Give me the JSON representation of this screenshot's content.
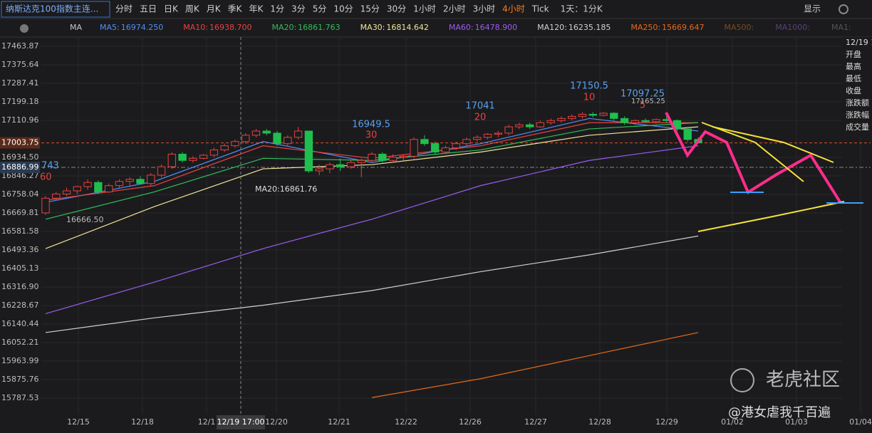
{
  "toolbar": {
    "symbol": "纳斯达克100指数主连...",
    "periods": [
      "分时",
      "五日",
      "日K",
      "周K",
      "月K",
      "季K",
      "年K",
      "1分",
      "3分",
      "5分",
      "10分",
      "15分",
      "30分",
      "1小时",
      "2小时",
      "3小时",
      "4小时",
      "Tick"
    ],
    "active": "4小时",
    "range": "1天：1分K",
    "display": "显示"
  },
  "legend": {
    "title": "MA",
    "items": [
      {
        "name": "MA5:",
        "value": "16974.250",
        "color": "#4f8ff7"
      },
      {
        "name": "MA10:",
        "value": "16938.700",
        "color": "#e8423f"
      },
      {
        "name": "MA20:",
        "value": "16861.763",
        "color": "#2fbf5b"
      },
      {
        "name": "MA30:",
        "value": "16814.642",
        "color": "#f2e59a"
      },
      {
        "name": "MA60:",
        "value": "16478.900",
        "color": "#9b5cf0"
      },
      {
        "name": "MA120:",
        "value": "16235.185",
        "color": "#d0d0d0"
      },
      {
        "name": "MA250:",
        "value": "15669.647",
        "color": "#e66a1a"
      },
      {
        "name": "MA500:",
        "value": "",
        "color": "#7a4a22"
      },
      {
        "name": "MA1000:",
        "value": "",
        "color": "#5b3f7a"
      },
      {
        "name": "MA1:",
        "value": "",
        "color": "#555555"
      }
    ]
  },
  "chart_data": {
    "type": "candlestick",
    "ylim": [
      15709.5,
      17508
    ],
    "yticks": [
      17463.87,
      17375.64,
      17287.41,
      17199.18,
      17110.96,
      {
        "value": 16934.5,
        "label": "16934.50"
      },
      16846.27,
      16758.04,
      16669.81,
      16581.58,
      16493.36,
      16405.13,
      {
        "value": 16316.9,
        "label": "16316.90"
      },
      16228.67,
      16140.44,
      16052.21,
      15963.99,
      15875.76,
      15787.53
    ],
    "price_markers": [
      17003.75,
      16886.99
    ],
    "x_labels": [
      "12/15",
      "12/18",
      "12/1",
      "12/20",
      "12/21",
      "12/22",
      "12/26",
      "12/27",
      "12/28",
      "12/29",
      "01/02",
      "01/03",
      "01/04"
    ],
    "crosshair_label": "12/19 17:00",
    "candles": [
      [
        16670,
        16750,
        16660,
        16740
      ],
      [
        16740,
        16770,
        16730,
        16760
      ],
      [
        16760,
        16790,
        16750,
        16775
      ],
      [
        16775,
        16800,
        16760,
        16795
      ],
      [
        16795,
        16830,
        16780,
        16815
      ],
      [
        16815,
        16825,
        16760,
        16770
      ],
      [
        16770,
        16810,
        16765,
        16800
      ],
      [
        16800,
        16830,
        16790,
        16820
      ],
      [
        16820,
        16840,
        16800,
        16830
      ],
      [
        16830,
        16845,
        16805,
        16810
      ],
      [
        16810,
        16860,
        16800,
        16850
      ],
      [
        16850,
        16900,
        16840,
        16890
      ],
      [
        16890,
        16960,
        16880,
        16950
      ],
      [
        16950,
        16960,
        16910,
        16920
      ],
      [
        16920,
        16940,
        16910,
        16930
      ],
      [
        16930,
        16950,
        16925,
        16945
      ],
      [
        16945,
        16980,
        16935,
        16970
      ],
      [
        16970,
        17000,
        16960,
        16990
      ],
      [
        16990,
        17020,
        16980,
        17010
      ],
      [
        17010,
        17050,
        17000,
        17040
      ],
      [
        17040,
        17070,
        17030,
        17060
      ],
      [
        17060,
        17070,
        17040,
        17050
      ],
      [
        17050,
        17060,
        16990,
        17000
      ],
      [
        17000,
        17040,
        16990,
        17030
      ],
      [
        17030,
        17080,
        17020,
        17060
      ],
      [
        17060,
        17060,
        16860,
        16870
      ],
      [
        16870,
        16900,
        16850,
        16880
      ],
      [
        16880,
        16910,
        16860,
        16900
      ],
      [
        16900,
        16930,
        16870,
        16890
      ],
      [
        16890,
        16920,
        16880,
        16910
      ],
      [
        16910,
        16930,
        16840,
        16920
      ],
      [
        16920,
        16960,
        16910,
        16950
      ],
      [
        16950,
        16960,
        16910,
        16920
      ],
      [
        16920,
        16950,
        16910,
        16935
      ],
      [
        16935,
        16950,
        16920,
        16940
      ],
      [
        16940,
        17030,
        16930,
        17020
      ],
      [
        17020,
        17040,
        16990,
        17000
      ],
      [
        17000,
        17010,
        16950,
        16960
      ],
      [
        16960,
        16990,
        16950,
        16980
      ],
      [
        16980,
        17010,
        16970,
        17000
      ],
      [
        17000,
        17030,
        16990,
        17020
      ],
      [
        17020,
        17040,
        17010,
        17030
      ],
      [
        17030,
        17050,
        17020,
        17045
      ],
      [
        17045,
        17060,
        17030,
        17050
      ],
      [
        17050,
        17090,
        17040,
        17080
      ],
      [
        17080,
        17100,
        17070,
        17090
      ],
      [
        17090,
        17100,
        17070,
        17080
      ],
      [
        17080,
        17110,
        17075,
        17100
      ],
      [
        17100,
        17120,
        17090,
        17110
      ],
      [
        17110,
        17130,
        17100,
        17120
      ],
      [
        17120,
        17140,
        17110,
        17130
      ],
      [
        17130,
        17150,
        17120,
        17140
      ],
      [
        17140,
        17150,
        17125,
        17135
      ],
      [
        17135,
        17150,
        17130,
        17145
      ],
      [
        17145,
        17150,
        17110,
        17120
      ],
      [
        17120,
        17130,
        17090,
        17100
      ],
      [
        17100,
        17115,
        17090,
        17110
      ],
      [
        17110,
        17120,
        17100,
        17105
      ],
      [
        17105,
        17120,
        17095,
        17115
      ],
      [
        17115,
        17130,
        17100,
        17110
      ],
      [
        17110,
        17115,
        17060,
        17070
      ],
      [
        17070,
        17080,
        17010,
        17020
      ],
      [
        17020,
        17030,
        17000,
        17003.75
      ]
    ],
    "ma_lines": [
      [
        16720,
        16820,
        17010,
        16910,
        17000,
        17120,
        17060
      ],
      [
        16730,
        16800,
        16990,
        16930,
        16990,
        17100,
        17100
      ],
      [
        16640,
        16770,
        16930,
        16920,
        16970,
        17070,
        17100
      ],
      [
        16500,
        16700,
        16880,
        16900,
        16960,
        17040,
        17080
      ],
      [
        16190,
        16340,
        16500,
        16640,
        16800,
        16920,
        16990
      ],
      [
        16100,
        16170,
        16230,
        16300,
        16390,
        16470,
        16560
      ],
      [
        null,
        null,
        null,
        15790,
        15880,
        15990,
        16100
      ]
    ],
    "annotations": {
      "a1": "17150.5",
      "a1n": "10",
      "a2": "17041",
      "a2n": "20",
      "a3": "16949.5",
      "a3n": "30",
      "a4": "17097.25",
      "a4n": "5",
      "a5": "17165.25",
      "a6": "16666.50",
      "a7": "743",
      "a7n": "60",
      "a8": "MA20:16861.76"
    }
  },
  "side_panel": {
    "date": "12/19 1",
    "rows": [
      "开盘",
      "最高",
      "最低",
      "收盘",
      "涨跌额",
      "涨跌幅",
      "成交量"
    ]
  },
  "watermark": {
    "brand": "老虎社区",
    "user": "@港女虐我千百遍"
  }
}
